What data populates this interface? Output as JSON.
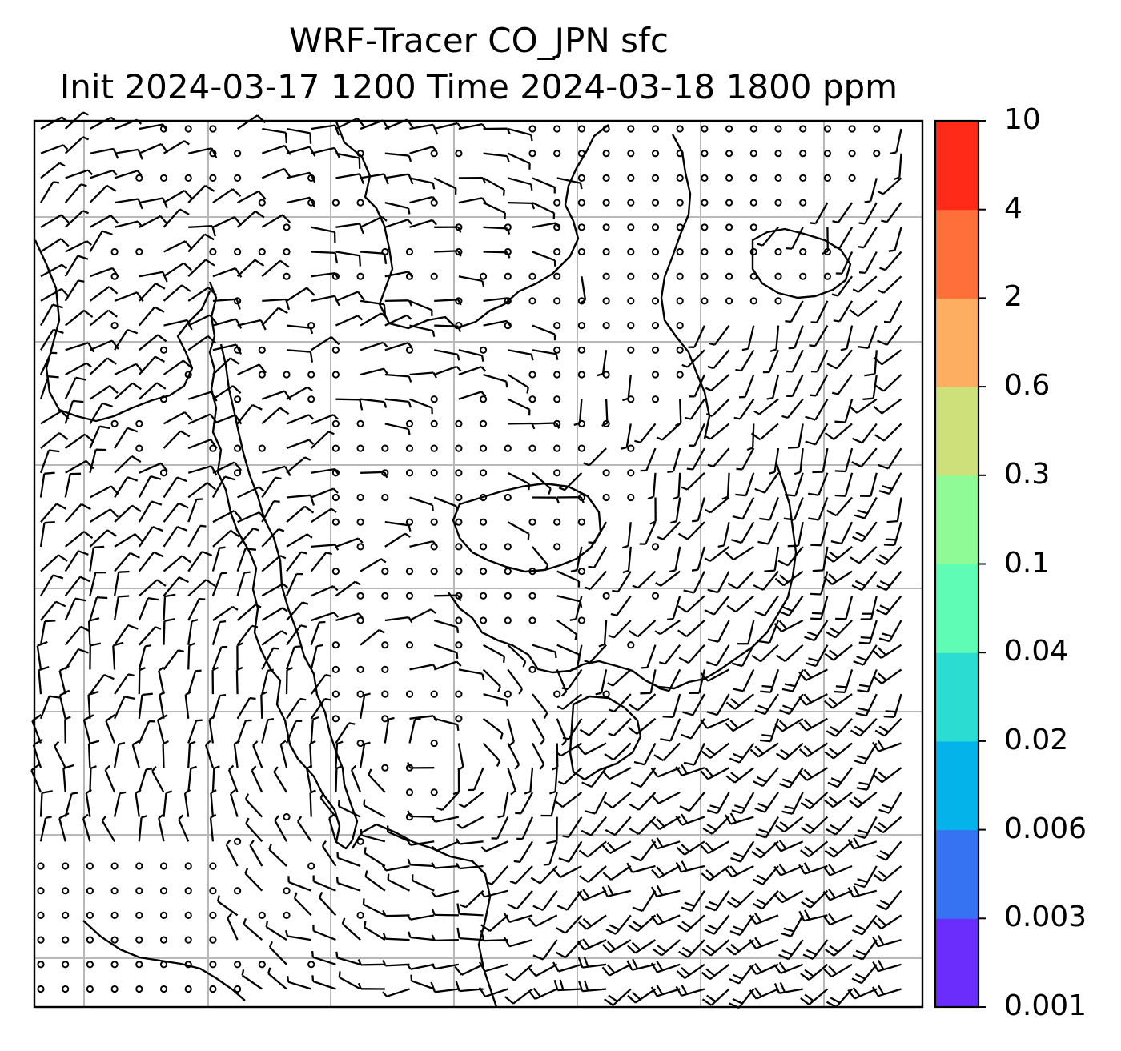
{
  "title": {
    "line1": "WRF-Tracer CO_JPN sfc",
    "line2": "Init 2024-03-17 1200 Time 2024-03-18 1800 ppm"
  },
  "map": {
    "field_variable": "CO_JPN tracer concentration",
    "overlay": "surface wind barbs",
    "coastlines": true,
    "gridlines": true
  },
  "colorbar": {
    "levels": [
      "0.001",
      "0.003",
      "0.006",
      "0.02",
      "0.04",
      "0.1",
      "0.3",
      "0.6",
      "2",
      "4",
      "10"
    ],
    "colors": [
      "#6a2dfb",
      "#3673f2",
      "#04b3ea",
      "#2bdcd3",
      "#5efcb4",
      "#8ffb96",
      "#cde07a",
      "#fdae61",
      "#ff6f3a",
      "#ff2a17"
    ]
  }
}
